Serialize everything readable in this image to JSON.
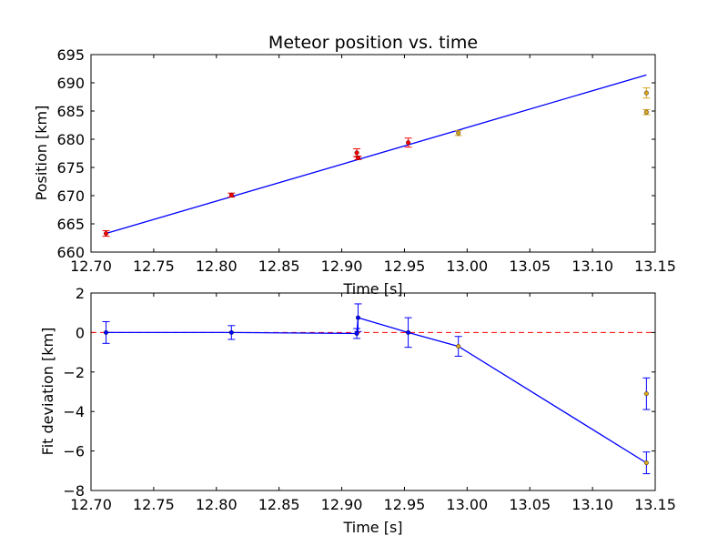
{
  "chart_data": [
    {
      "type": "scatter",
      "title": "Meteor position vs. time",
      "xlabel": "Time [s]",
      "ylabel": "Position [km]",
      "xlim": [
        12.7,
        13.15
      ],
      "ylim": [
        660,
        695
      ],
      "xticks": [
        "12.70",
        "12.75",
        "12.80",
        "12.85",
        "12.90",
        "12.95",
        "13.00",
        "13.05",
        "13.10",
        "13.15"
      ],
      "yticks": [
        "660",
        "665",
        "670",
        "675",
        "680",
        "685",
        "690",
        "695"
      ],
      "grid": false,
      "fit_line": {
        "x": [
          12.712,
          13.143
        ],
        "y": [
          663.3,
          691.4
        ],
        "color": "#0000ff"
      },
      "series": [
        {
          "color": "#ff0000",
          "points": [
            {
              "x": 12.712,
              "y": 663.3,
              "err": 0.5
            },
            {
              "x": 12.812,
              "y": 670.1,
              "err": 0.35
            },
            {
              "x": 12.912,
              "y": 677.6,
              "err": 0.7
            },
            {
              "x": 12.913,
              "y": 676.7,
              "err": 0.3
            },
            {
              "x": 12.953,
              "y": 679.4,
              "err": 0.8
            }
          ]
        },
        {
          "color": "#daa520",
          "points": [
            {
              "x": 12.993,
              "y": 681.1,
              "err": 0.45
            },
            {
              "x": 13.143,
              "y": 688.2,
              "err": 0.9
            },
            {
              "x": 13.143,
              "y": 684.8,
              "err": 0.45
            }
          ]
        }
      ]
    },
    {
      "type": "line",
      "xlabel": "Time [s]",
      "ylabel": "Fit deviation [km]",
      "xlim": [
        12.7,
        13.15
      ],
      "ylim": [
        -8,
        2
      ],
      "xticks": [
        "12.70",
        "12.75",
        "12.80",
        "12.85",
        "12.90",
        "12.95",
        "13.00",
        "13.05",
        "13.10",
        "13.15"
      ],
      "yticks": [
        "2",
        "0",
        "−2",
        "−4",
        "−6",
        "−8"
      ],
      "grid": false,
      "zero_line": {
        "y": 0,
        "color": "#ff0000",
        "style": "dashed"
      },
      "line_color": "#0000ff",
      "points": [
        {
          "x": 12.712,
          "y": 0.0,
          "err": 0.55,
          "color": "#0000ff"
        },
        {
          "x": 12.812,
          "y": 0.0,
          "err": 0.35,
          "color": "#0000ff"
        },
        {
          "x": 12.912,
          "y": -0.05,
          "err": 0.25,
          "color": "#0000ff"
        },
        {
          "x": 12.913,
          "y": 0.75,
          "err": 0.7,
          "color": "#0000ff"
        },
        {
          "x": 12.953,
          "y": 0.0,
          "err": 0.75,
          "color": "#0000ff"
        },
        {
          "x": 12.993,
          "y": -0.7,
          "err": 0.5,
          "color": "#daa520"
        },
        {
          "x": 13.143,
          "y": -6.6,
          "err": 0.55,
          "color": "#daa520"
        },
        {
          "x": 13.143,
          "y": -3.1,
          "err": 0.8,
          "color": "#daa520"
        }
      ],
      "line_order": [
        0,
        1,
        2,
        3,
        4,
        5,
        6
      ]
    }
  ]
}
